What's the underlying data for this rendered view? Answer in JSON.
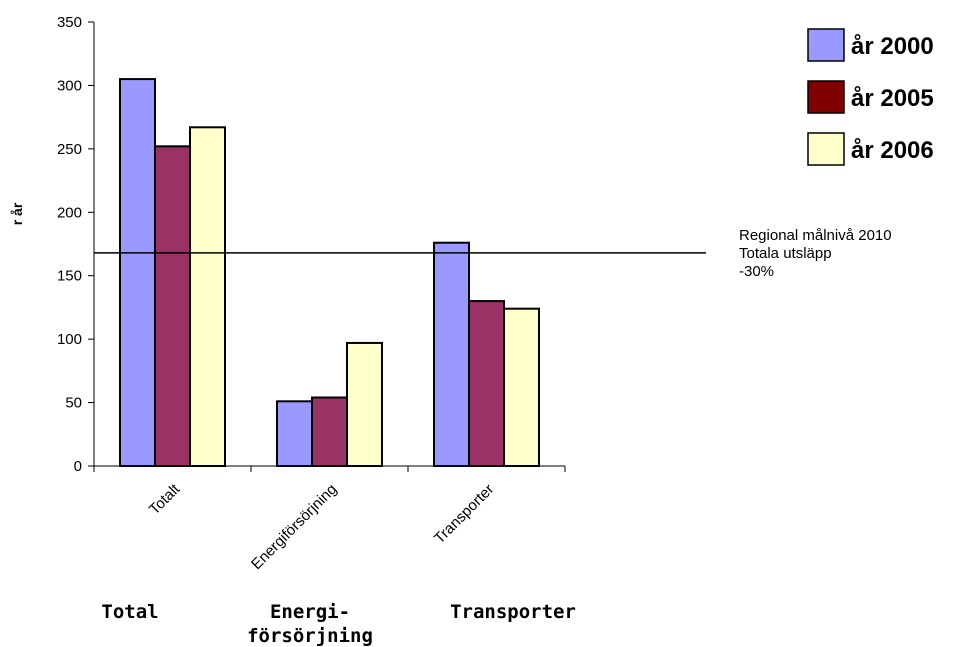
{
  "chart_data": {
    "type": "bar",
    "categories": [
      "Totalt",
      "Energiförsörjning",
      "Transporter"
    ],
    "series": [
      {
        "name": "år 2000",
        "color": "#9999ff",
        "values": [
          305,
          51,
          176
        ]
      },
      {
        "name": "år 2005",
        "color": "#993366",
        "values": [
          252,
          54,
          130
        ]
      },
      {
        "name": "år 2006",
        "color": "#ffffcc",
        "values": [
          267,
          97,
          124
        ]
      }
    ],
    "legend_colors": [
      "#9999ff",
      "#800000",
      "#ffffcc"
    ],
    "ylabel": "r år",
    "ylim": [
      0,
      350
    ],
    "yticks": [
      0,
      50,
      100,
      150,
      200,
      250,
      300,
      350
    ],
    "grid": false,
    "legend_position": "top-right",
    "reference_line": {
      "value": 168,
      "label_lines": [
        "Regional målnivå 2010",
        "Totala utsläpp",
        "-30%"
      ]
    },
    "bottom_labels": [
      [
        "Total"
      ],
      [
        "Energi-",
        "försörjning"
      ],
      [
        "Transporter"
      ]
    ]
  }
}
